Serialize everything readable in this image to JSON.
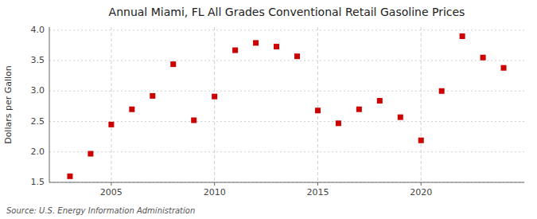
{
  "chart_data": {
    "type": "scatter",
    "title": "Annual Miami, FL All Grades Conventional Retail Gasoline Prices",
    "ylabel": "Dollars per Gallon",
    "source": "Source: U.S. Energy Information Administration",
    "x": [
      2003,
      2004,
      2005,
      2006,
      2007,
      2008,
      2009,
      2010,
      2011,
      2012,
      2013,
      2014,
      2015,
      2016,
      2017,
      2018,
      2019,
      2020,
      2021,
      2022,
      2023,
      2024
    ],
    "values": [
      1.6,
      1.97,
      2.45,
      2.7,
      2.92,
      3.44,
      2.52,
      2.91,
      3.67,
      3.79,
      3.73,
      3.57,
      2.68,
      2.47,
      2.7,
      2.84,
      2.57,
      2.19,
      3.0,
      3.9,
      3.55,
      3.38
    ],
    "color": "#cc0000",
    "marker": "square",
    "xlim": [
      2002,
      2025
    ],
    "ylim": [
      1.5,
      4.05
    ],
    "xticks": [
      2005,
      2010,
      2015,
      2020
    ],
    "yticks": [
      1.5,
      {
        "value": 2.0,
        "label": "2.0"
      },
      2.5,
      {
        "value": 3.0,
        "label": "3.0"
      },
      3.5,
      {
        "value": 4.0,
        "label": "4.0"
      }
    ],
    "grid": true
  }
}
